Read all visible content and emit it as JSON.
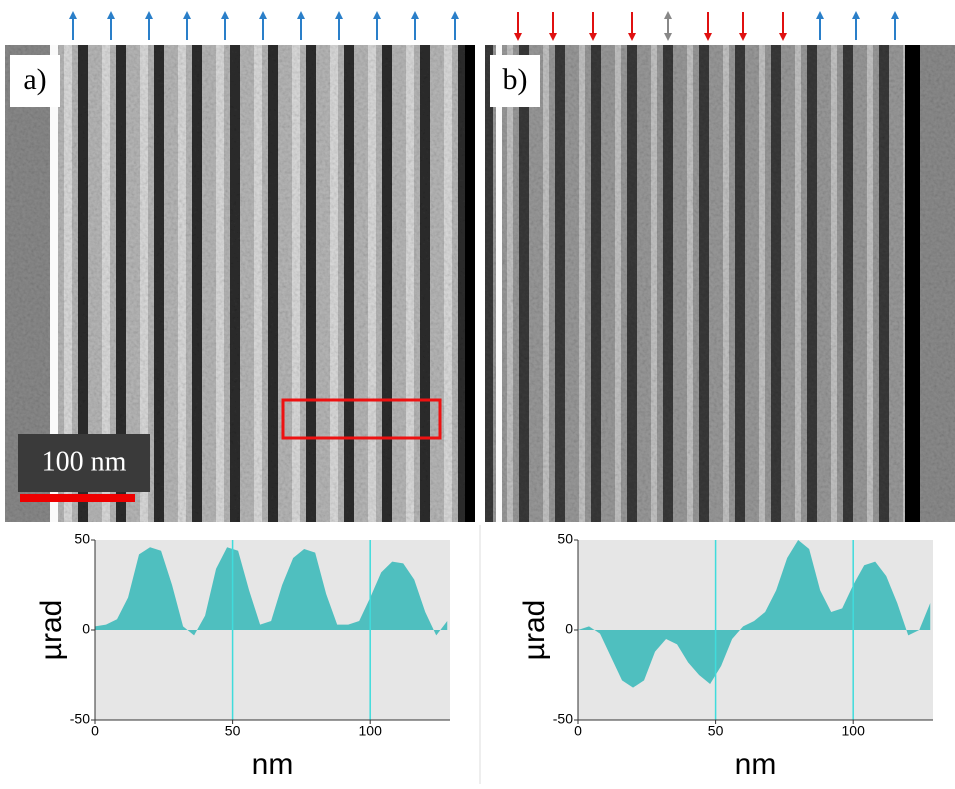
{
  "panels": [
    "a)",
    "b)"
  ],
  "scale_bar": "100 nm",
  "chart_data": [
    {
      "type": "area",
      "y_label": "µrad",
      "x_label": "nm",
      "color": "#4fbfbf",
      "x": [
        0,
        4,
        8,
        12,
        16,
        20,
        24,
        28,
        32,
        36,
        40,
        44,
        48,
        52,
        56,
        60,
        64,
        68,
        72,
        76,
        80,
        84,
        88,
        92,
        96,
        100,
        104,
        108,
        112,
        116,
        120,
        124,
        128
      ],
      "values": [
        2,
        3,
        6,
        18,
        42,
        46,
        44,
        25,
        2,
        -3,
        8,
        34,
        46,
        44,
        22,
        3,
        5,
        25,
        40,
        45,
        43,
        20,
        3,
        3,
        5,
        18,
        32,
        38,
        37,
        28,
        10,
        -3,
        5
      ],
      "xlim": [
        0,
        129
      ],
      "ylim": [
        -50,
        50
      ],
      "xticks": [
        0,
        50,
        100
      ],
      "yticks": [
        -50,
        0,
        50
      ],
      "grid": true
    },
    {
      "type": "area",
      "y_label": "µrad",
      "x_label": "nm",
      "color": "#4fbfbf",
      "x": [
        0,
        4,
        8,
        12,
        16,
        20,
        24,
        28,
        32,
        36,
        40,
        44,
        48,
        52,
        56,
        60,
        64,
        68,
        72,
        76,
        80,
        84,
        88,
        92,
        96,
        100,
        104,
        108,
        112,
        116,
        120,
        124,
        128
      ],
      "values": [
        0,
        2,
        -2,
        -15,
        -28,
        -32,
        -28,
        -12,
        -5,
        -8,
        -18,
        -25,
        -30,
        -20,
        -5,
        2,
        5,
        10,
        22,
        40,
        50,
        45,
        22,
        10,
        12,
        25,
        36,
        38,
        30,
        15,
        -3,
        0,
        15
      ],
      "xlim": [
        0,
        129
      ],
      "ylim": [
        -50,
        50
      ],
      "xticks": [
        0,
        50,
        100
      ],
      "yticks": [
        -50,
        0,
        50
      ],
      "grid": true
    }
  ]
}
